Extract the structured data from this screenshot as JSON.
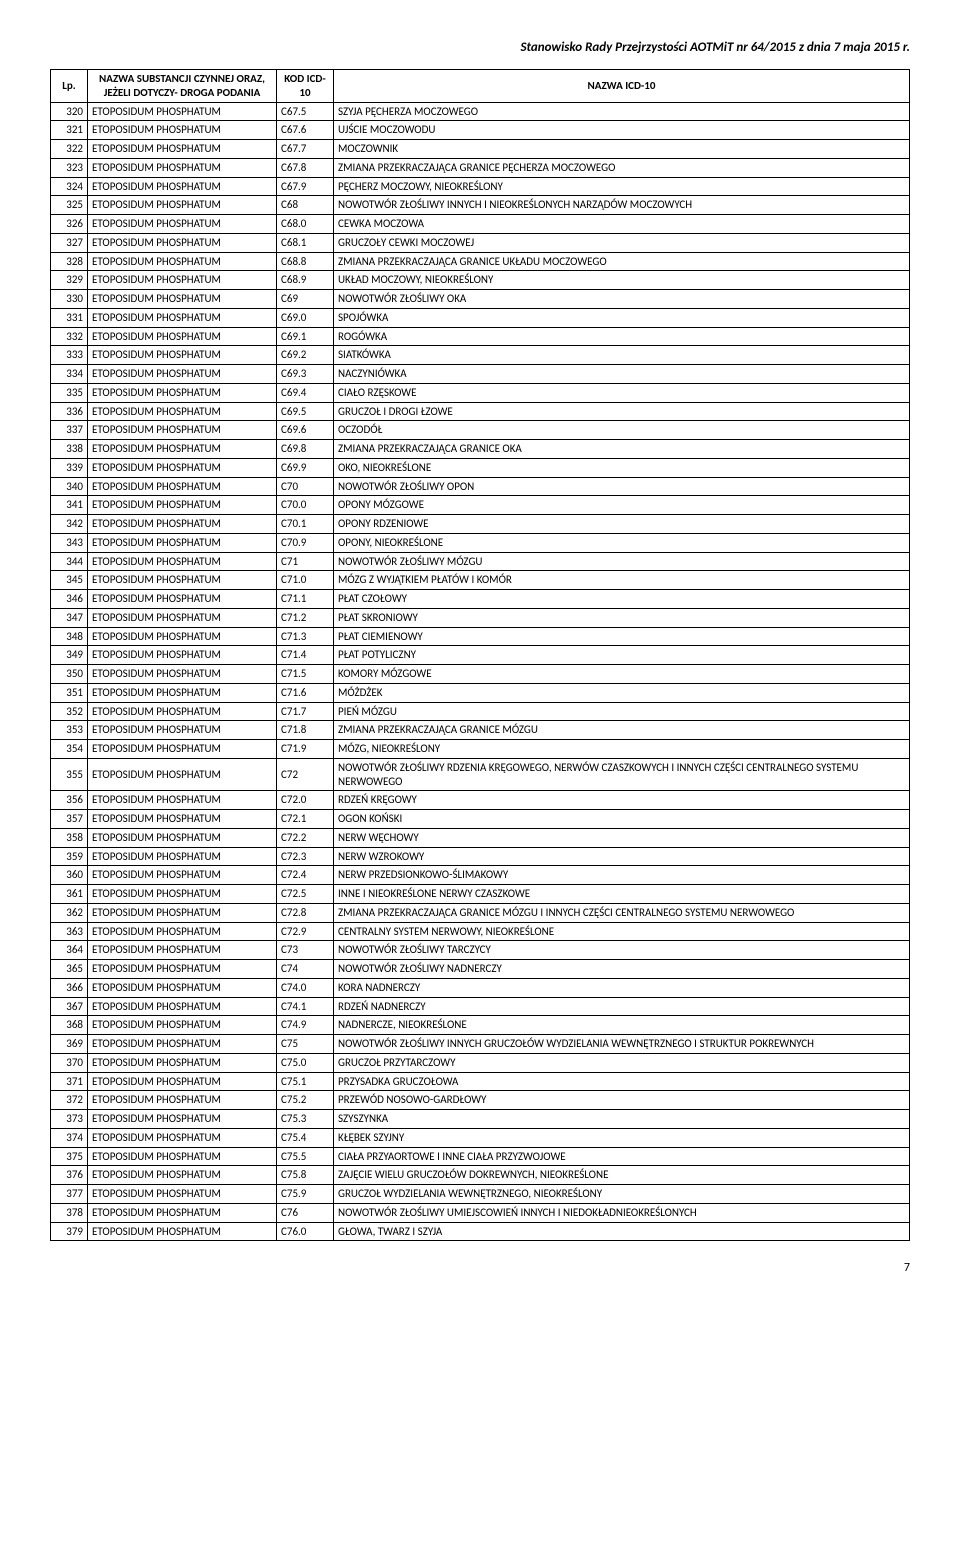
{
  "header": "Stanowisko Rady Przejrzystości AOTMiT nr 64/2015 z dnia 7 maja 2015 r.",
  "columns": {
    "lp": "Lp.",
    "substance": "NAZWA SUBSTANCJI CZYNNEJ ORAZ, JEŻELI DOTYCZY- DROGA PODANIA",
    "kod": "KOD ICD-10",
    "name": "NAZWA ICD-10"
  },
  "rows": [
    {
      "lp": "320",
      "sub": "ETOPOSIDUM PHOSPHATUM",
      "kod": "C67.5",
      "naz": "SZYJA PĘCHERZA MOCZOWEGO"
    },
    {
      "lp": "321",
      "sub": "ETOPOSIDUM PHOSPHATUM",
      "kod": "C67.6",
      "naz": "UJŚCIE MOCZOWODU"
    },
    {
      "lp": "322",
      "sub": "ETOPOSIDUM PHOSPHATUM",
      "kod": "C67.7",
      "naz": "MOCZOWNIK"
    },
    {
      "lp": "323",
      "sub": "ETOPOSIDUM PHOSPHATUM",
      "kod": "C67.8",
      "naz": "ZMIANA PRZEKRACZAJĄCA GRANICE PĘCHERZA MOCZOWEGO"
    },
    {
      "lp": "324",
      "sub": "ETOPOSIDUM PHOSPHATUM",
      "kod": "C67.9",
      "naz": "PĘCHERZ MOCZOWY, NIEOKREŚLONY"
    },
    {
      "lp": "325",
      "sub": "ETOPOSIDUM PHOSPHATUM",
      "kod": "C68",
      "naz": "NOWOTWÓR ZŁOŚLIWY INNYCH I NIEOKREŚLONYCH NARZĄDÓW MOCZOWYCH"
    },
    {
      "lp": "326",
      "sub": "ETOPOSIDUM PHOSPHATUM",
      "kod": "C68.0",
      "naz": "CEWKA MOCZOWA"
    },
    {
      "lp": "327",
      "sub": "ETOPOSIDUM PHOSPHATUM",
      "kod": "C68.1",
      "naz": "GRUCZOŁY CEWKI MOCZOWEJ"
    },
    {
      "lp": "328",
      "sub": "ETOPOSIDUM PHOSPHATUM",
      "kod": "C68.8",
      "naz": "ZMIANA PRZEKRACZAJĄCA GRANICE UKŁADU MOCZOWEGO"
    },
    {
      "lp": "329",
      "sub": "ETOPOSIDUM PHOSPHATUM",
      "kod": "C68.9",
      "naz": "UKŁAD MOCZOWY, NIEOKREŚLONY"
    },
    {
      "lp": "330",
      "sub": "ETOPOSIDUM PHOSPHATUM",
      "kod": "C69",
      "naz": "NOWOTWÓR ZŁOŚLIWY OKA"
    },
    {
      "lp": "331",
      "sub": "ETOPOSIDUM PHOSPHATUM",
      "kod": "C69.0",
      "naz": "SPOJÓWKA"
    },
    {
      "lp": "332",
      "sub": "ETOPOSIDUM PHOSPHATUM",
      "kod": "C69.1",
      "naz": "ROGÓWKA"
    },
    {
      "lp": "333",
      "sub": "ETOPOSIDUM PHOSPHATUM",
      "kod": "C69.2",
      "naz": "SIATKÓWKA"
    },
    {
      "lp": "334",
      "sub": "ETOPOSIDUM PHOSPHATUM",
      "kod": "C69.3",
      "naz": "NACZYNIÓWKA"
    },
    {
      "lp": "335",
      "sub": "ETOPOSIDUM PHOSPHATUM",
      "kod": "C69.4",
      "naz": "CIAŁO RZĘSKOWE"
    },
    {
      "lp": "336",
      "sub": "ETOPOSIDUM PHOSPHATUM",
      "kod": "C69.5",
      "naz": "GRUCZOŁ I DROGI ŁZOWE"
    },
    {
      "lp": "337",
      "sub": "ETOPOSIDUM PHOSPHATUM",
      "kod": "C69.6",
      "naz": "OCZODÓŁ"
    },
    {
      "lp": "338",
      "sub": "ETOPOSIDUM PHOSPHATUM",
      "kod": "C69.8",
      "naz": "ZMIANA PRZEKRACZAJĄCA GRANICE OKA"
    },
    {
      "lp": "339",
      "sub": "ETOPOSIDUM PHOSPHATUM",
      "kod": "C69.9",
      "naz": "OKO, NIEOKREŚLONE"
    },
    {
      "lp": "340",
      "sub": "ETOPOSIDUM PHOSPHATUM",
      "kod": "C70",
      "naz": "NOWOTWÓR ZŁOŚLIWY OPON"
    },
    {
      "lp": "341",
      "sub": "ETOPOSIDUM PHOSPHATUM",
      "kod": "C70.0",
      "naz": "OPONY MÓZGOWE"
    },
    {
      "lp": "342",
      "sub": "ETOPOSIDUM PHOSPHATUM",
      "kod": "C70.1",
      "naz": "OPONY RDZENIOWE"
    },
    {
      "lp": "343",
      "sub": "ETOPOSIDUM PHOSPHATUM",
      "kod": "C70.9",
      "naz": "OPONY, NIEOKREŚLONE"
    },
    {
      "lp": "344",
      "sub": "ETOPOSIDUM PHOSPHATUM",
      "kod": "C71",
      "naz": "NOWOTWÓR ZŁOŚLIWY MÓZGU"
    },
    {
      "lp": "345",
      "sub": "ETOPOSIDUM PHOSPHATUM",
      "kod": "C71.0",
      "naz": "MÓZG Z WYJĄTKIEM PŁATÓW I KOMÓR"
    },
    {
      "lp": "346",
      "sub": "ETOPOSIDUM PHOSPHATUM",
      "kod": "C71.1",
      "naz": "PŁAT CZOŁOWY"
    },
    {
      "lp": "347",
      "sub": "ETOPOSIDUM PHOSPHATUM",
      "kod": "C71.2",
      "naz": "PŁAT SKRONIOWY"
    },
    {
      "lp": "348",
      "sub": "ETOPOSIDUM PHOSPHATUM",
      "kod": "C71.3",
      "naz": "PŁAT CIEMIENOWY"
    },
    {
      "lp": "349",
      "sub": "ETOPOSIDUM PHOSPHATUM",
      "kod": "C71.4",
      "naz": "PŁAT POTYLICZNY"
    },
    {
      "lp": "350",
      "sub": "ETOPOSIDUM PHOSPHATUM",
      "kod": "C71.5",
      "naz": "KOMORY MÓZGOWE"
    },
    {
      "lp": "351",
      "sub": "ETOPOSIDUM PHOSPHATUM",
      "kod": "C71.6",
      "naz": "MÓŻDŻEK"
    },
    {
      "lp": "352",
      "sub": "ETOPOSIDUM PHOSPHATUM",
      "kod": "C71.7",
      "naz": "PIEŃ MÓZGU"
    },
    {
      "lp": "353",
      "sub": "ETOPOSIDUM PHOSPHATUM",
      "kod": "C71.8",
      "naz": "ZMIANA PRZEKRACZAJĄCA GRANICE MÓZGU"
    },
    {
      "lp": "354",
      "sub": "ETOPOSIDUM PHOSPHATUM",
      "kod": "C71.9",
      "naz": "MÓZG, NIEOKREŚLONY"
    },
    {
      "lp": "355",
      "sub": "ETOPOSIDUM PHOSPHATUM",
      "kod": "C72",
      "naz": "NOWOTWÓR ZŁOŚLIWY RDZENIA KRĘGOWEGO, NERWÓW CZASZKOWYCH I INNYCH CZĘŚCI CENTRALNEGO SYSTEMU NERWOWEGO"
    },
    {
      "lp": "356",
      "sub": "ETOPOSIDUM PHOSPHATUM",
      "kod": "C72.0",
      "naz": "RDZEŃ KRĘGOWY"
    },
    {
      "lp": "357",
      "sub": "ETOPOSIDUM PHOSPHATUM",
      "kod": "C72.1",
      "naz": "OGON KOŃSKI"
    },
    {
      "lp": "358",
      "sub": "ETOPOSIDUM PHOSPHATUM",
      "kod": "C72.2",
      "naz": "NERW WĘCHOWY"
    },
    {
      "lp": "359",
      "sub": "ETOPOSIDUM PHOSPHATUM",
      "kod": "C72.3",
      "naz": "NERW WZROKOWY"
    },
    {
      "lp": "360",
      "sub": "ETOPOSIDUM PHOSPHATUM",
      "kod": "C72.4",
      "naz": "NERW PRZEDSIONKOWO-ŚLIMAKOWY"
    },
    {
      "lp": "361",
      "sub": "ETOPOSIDUM PHOSPHATUM",
      "kod": "C72.5",
      "naz": "INNE I NIEOKREŚLONE NERWY CZASZKOWE"
    },
    {
      "lp": "362",
      "sub": "ETOPOSIDUM PHOSPHATUM",
      "kod": "C72.8",
      "naz": "ZMIANA PRZEKRACZAJĄCA GRANICE MÓZGU I INNYCH CZĘŚCI CENTRALNEGO SYSTEMU NERWOWEGO"
    },
    {
      "lp": "363",
      "sub": "ETOPOSIDUM PHOSPHATUM",
      "kod": "C72.9",
      "naz": "CENTRALNY SYSTEM NERWOWY, NIEOKREŚLONE"
    },
    {
      "lp": "364",
      "sub": "ETOPOSIDUM PHOSPHATUM",
      "kod": "C73",
      "naz": "NOWOTWÓR ZŁOŚLIWY TARCZYCY"
    },
    {
      "lp": "365",
      "sub": "ETOPOSIDUM PHOSPHATUM",
      "kod": "C74",
      "naz": "NOWOTWÓR ZŁOŚLIWY NADNERCZY"
    },
    {
      "lp": "366",
      "sub": "ETOPOSIDUM PHOSPHATUM",
      "kod": "C74.0",
      "naz": "KORA NADNERCZY"
    },
    {
      "lp": "367",
      "sub": "ETOPOSIDUM PHOSPHATUM",
      "kod": "C74.1",
      "naz": "RDZEŃ NADNERCZY"
    },
    {
      "lp": "368",
      "sub": "ETOPOSIDUM PHOSPHATUM",
      "kod": "C74.9",
      "naz": "NADNERCZE, NIEOKREŚLONE"
    },
    {
      "lp": "369",
      "sub": "ETOPOSIDUM PHOSPHATUM",
      "kod": "C75",
      "naz": "NOWOTWÓR ZŁOŚLIWY INNYCH GRUCZOŁÓW WYDZIELANIA WEWNĘTRZNEGO I STRUKTUR POKREWNYCH"
    },
    {
      "lp": "370",
      "sub": "ETOPOSIDUM PHOSPHATUM",
      "kod": "C75.0",
      "naz": "GRUCZOŁ PRZYTARCZOWY"
    },
    {
      "lp": "371",
      "sub": "ETOPOSIDUM PHOSPHATUM",
      "kod": "C75.1",
      "naz": "PRZYSADKA GRUCZOŁOWA"
    },
    {
      "lp": "372",
      "sub": "ETOPOSIDUM PHOSPHATUM",
      "kod": "C75.2",
      "naz": "PRZEWÓD NOSOWO-GARDŁOWY"
    },
    {
      "lp": "373",
      "sub": "ETOPOSIDUM PHOSPHATUM",
      "kod": "C75.3",
      "naz": "SZYSZYNKA"
    },
    {
      "lp": "374",
      "sub": "ETOPOSIDUM PHOSPHATUM",
      "kod": "C75.4",
      "naz": "KŁĘBEK SZYJNY"
    },
    {
      "lp": "375",
      "sub": "ETOPOSIDUM PHOSPHATUM",
      "kod": "C75.5",
      "naz": "CIAŁA PRZYAORTOWE I INNE CIAŁA PRZYZWOJOWE"
    },
    {
      "lp": "376",
      "sub": "ETOPOSIDUM PHOSPHATUM",
      "kod": "C75.8",
      "naz": "ZAJĘCIE WIELU GRUCZOŁÓW DOKREWNYCH, NIEOKREŚLONE"
    },
    {
      "lp": "377",
      "sub": "ETOPOSIDUM PHOSPHATUM",
      "kod": "C75.9",
      "naz": "GRUCZOŁ WYDZIELANIA WEWNĘTRZNEGO, NIEOKREŚLONY"
    },
    {
      "lp": "378",
      "sub": "ETOPOSIDUM PHOSPHATUM",
      "kod": "C76",
      "naz": "NOWOTWÓR ZŁOŚLIWY UMIEJSCOWIEŃ INNYCH I NIEDOKŁADNIEOKREŚLONYCH"
    },
    {
      "lp": "379",
      "sub": "ETOPOSIDUM PHOSPHATUM",
      "kod": "C76.0",
      "naz": "GŁOWA, TWARZ I SZYJA"
    }
  ],
  "pageNumber": "7"
}
